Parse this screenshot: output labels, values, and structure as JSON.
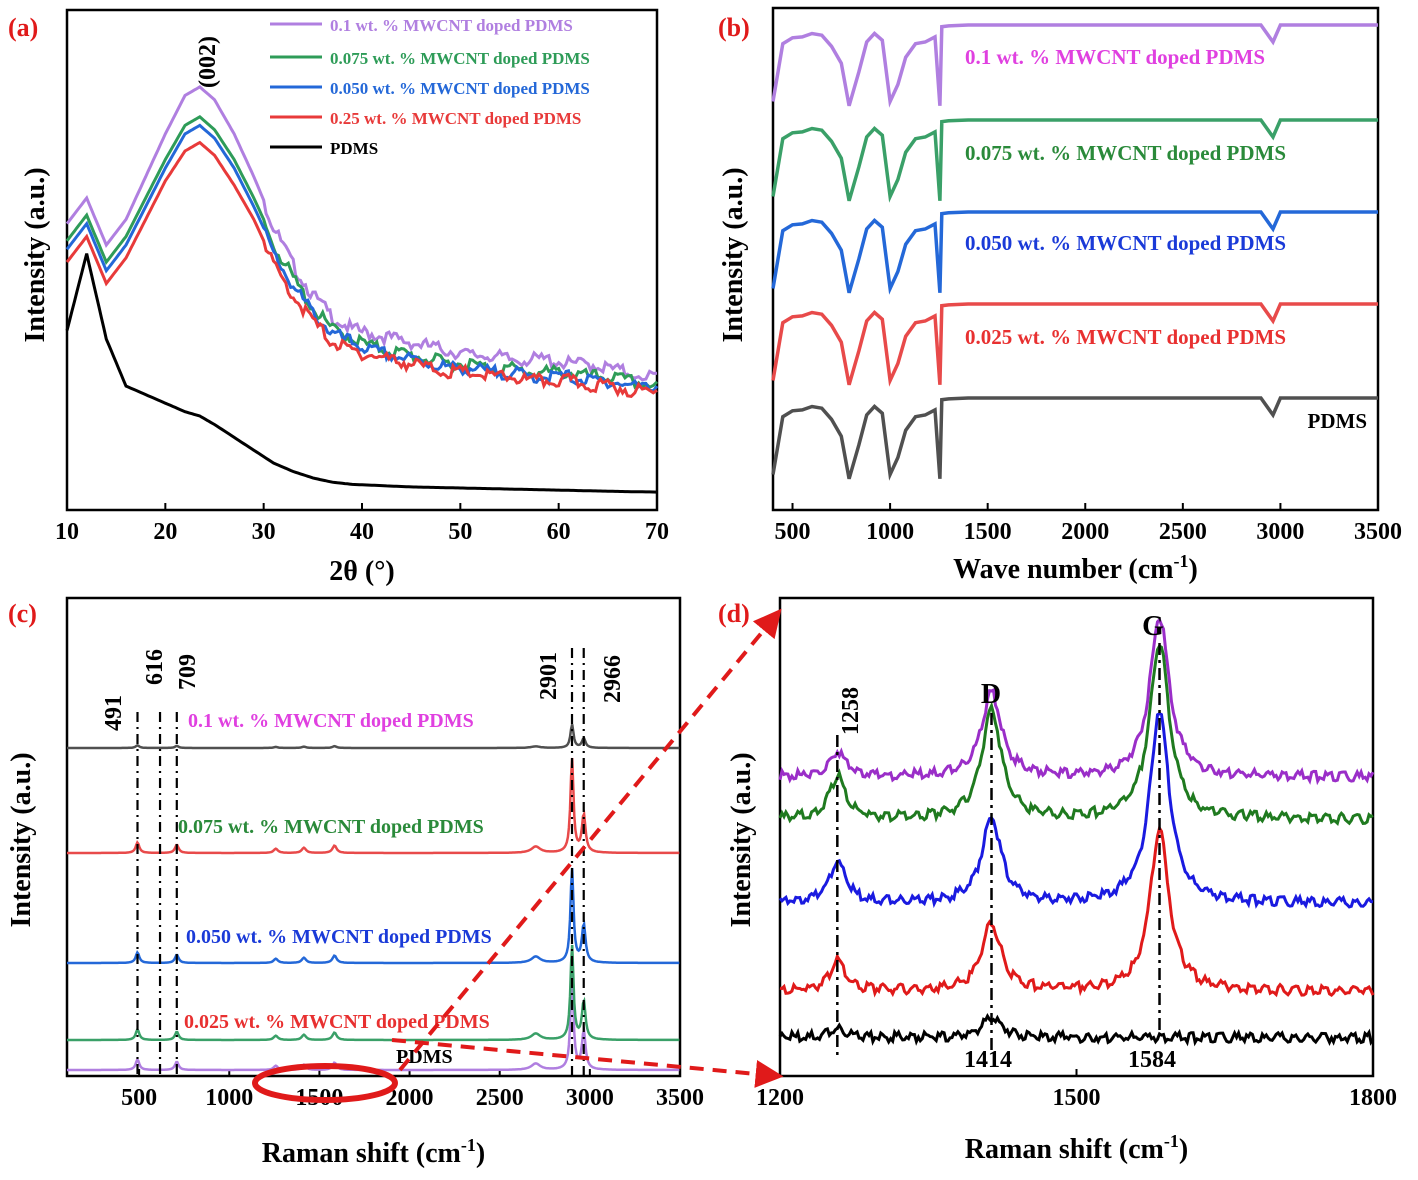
{
  "chart_data": [
    {
      "panel": "(a)",
      "type": "line",
      "xlabel": "2θ (°)",
      "ylabel": "Intensity (a.u.)",
      "xlim": [
        10,
        70
      ],
      "xticks": [
        "10",
        "20",
        "30",
        "40",
        "50",
        "60",
        "70"
      ],
      "annotations": [
        "(002)"
      ],
      "legend_position": "top-right",
      "x": [
        10,
        12,
        14,
        16,
        18,
        20,
        22,
        23.5,
        25,
        27,
        29,
        31,
        33,
        35,
        37,
        39,
        41,
        43,
        45,
        47,
        49,
        51,
        53,
        55,
        57,
        59,
        61,
        63,
        65,
        67,
        70
      ],
      "series": [
        {
          "name": "0.1 wt. % MWCNT doped PDMS",
          "color": "#b07fe0",
          "values": [
            65,
            71,
            60,
            66,
            76,
            86,
            95,
            97,
            94,
            86,
            76,
            65,
            56,
            49,
            44,
            41,
            40,
            39,
            38,
            37,
            36,
            35,
            35,
            34,
            34,
            34,
            33,
            33,
            32,
            31,
            30
          ]
        },
        {
          "name": "0.075 wt. % MWCNT doped PDMS",
          "color": "#2e9c58",
          "values": [
            61,
            67,
            56,
            62,
            71,
            80,
            88,
            90,
            87,
            80,
            71,
            61,
            53,
            46,
            41,
            39,
            37,
            36,
            35,
            34,
            33,
            33,
            32,
            32,
            31,
            31,
            31,
            30,
            30,
            29,
            28
          ]
        },
        {
          "name": "0.050 wt. % MWCNT doped PDMS",
          "color": "#2468d8",
          "values": [
            59,
            65,
            54,
            60,
            69,
            78,
            86,
            88,
            85,
            78,
            69,
            59,
            51,
            45,
            40,
            38,
            36,
            35,
            34,
            33,
            32,
            32,
            31,
            31,
            30,
            30,
            30,
            29,
            29,
            28,
            27
          ]
        },
        {
          "name": "0.25 wt. % MWCNT doped PDMS",
          "color": "#e83a3a",
          "values": [
            56,
            62,
            51,
            57,
            66,
            75,
            82,
            84,
            81,
            74,
            66,
            56,
            49,
            43,
            38,
            36,
            35,
            34,
            33,
            32,
            31,
            31,
            30,
            30,
            29,
            29,
            29,
            28,
            28,
            27,
            26
          ]
        },
        {
          "name": "PDMS",
          "color": "#000000",
          "values": [
            40,
            58,
            38,
            27,
            25,
            23,
            21,
            20,
            18,
            15,
            12,
            9,
            7,
            5.5,
            4.5,
            4,
            3.8,
            3.6,
            3.4,
            3.3,
            3.2,
            3.1,
            3,
            2.9,
            2.8,
            2.7,
            2.6,
            2.5,
            2.4,
            2.3,
            2.2
          ]
        }
      ]
    },
    {
      "panel": "(b)",
      "type": "line",
      "xlabel": "Wave number (cm",
      "xlabel_sup": "-1",
      "xlabel_end": ")",
      "ylabel": "Intensity (a.u.)",
      "xlim": [
        400,
        3500
      ],
      "xticks": [
        "500",
        "1000",
        "1500",
        "2000",
        "2500",
        "3000",
        "3500"
      ],
      "x": [
        400,
        450,
        500,
        550,
        600,
        650,
        700,
        750,
        790,
        840,
        880,
        920,
        960,
        1000,
        1040,
        1080,
        1130,
        1180,
        1230,
        1255,
        1265,
        1300,
        1400,
        1500,
        2000,
        2500,
        2900,
        2962,
        3000,
        3500
      ],
      "series": [
        {
          "name": "0.1 wt. % MWCNT doped PDMS",
          "color": "#b07fe0",
          "offset": 4,
          "values": [
            0.1,
            0.78,
            0.85,
            0.86,
            0.9,
            0.88,
            0.75,
            0.55,
            0.05,
            0.45,
            0.8,
            0.9,
            0.82,
            0.1,
            0.3,
            0.62,
            0.78,
            0.8,
            0.86,
            0.05,
            0.98,
            0.99,
            1.0,
            1.0,
            1.0,
            1.0,
            1.0,
            0.8,
            1.0,
            1.0
          ]
        },
        {
          "name": "0.075 wt. % MWCNT doped PDMS",
          "color": "#3aa068",
          "offset": 3,
          "values": [
            0.1,
            0.78,
            0.85,
            0.86,
            0.9,
            0.88,
            0.75,
            0.55,
            0.05,
            0.45,
            0.8,
            0.9,
            0.82,
            0.1,
            0.3,
            0.62,
            0.78,
            0.8,
            0.86,
            0.05,
            0.98,
            0.99,
            1.0,
            1.0,
            1.0,
            1.0,
            1.0,
            0.8,
            1.0,
            1.0
          ]
        },
        {
          "name": "0.050 wt. % MWCNT doped PDMS",
          "color": "#2468d8",
          "offset": 2,
          "values": [
            0.1,
            0.78,
            0.85,
            0.86,
            0.9,
            0.88,
            0.75,
            0.55,
            0.05,
            0.45,
            0.8,
            0.9,
            0.82,
            0.1,
            0.3,
            0.62,
            0.78,
            0.8,
            0.86,
            0.05,
            0.98,
            0.99,
            1.0,
            1.0,
            1.0,
            1.0,
            1.0,
            0.8,
            1.0,
            1.0
          ]
        },
        {
          "name": "0.025 wt. % MWCNT doped PDMS",
          "color": "#e84a4a",
          "offset": 1,
          "values": [
            0.1,
            0.78,
            0.85,
            0.86,
            0.9,
            0.88,
            0.75,
            0.55,
            0.05,
            0.45,
            0.8,
            0.9,
            0.82,
            0.1,
            0.3,
            0.62,
            0.78,
            0.8,
            0.86,
            0.05,
            0.98,
            0.99,
            1.0,
            1.0,
            1.0,
            1.0,
            1.0,
            0.8,
            1.0,
            1.0
          ]
        },
        {
          "name": "PDMS",
          "color": "#505050",
          "offset": 0,
          "values": [
            0.1,
            0.78,
            0.85,
            0.86,
            0.9,
            0.88,
            0.75,
            0.55,
            0.05,
            0.45,
            0.8,
            0.9,
            0.82,
            0.1,
            0.3,
            0.62,
            0.78,
            0.8,
            0.86,
            0.05,
            0.98,
            0.99,
            1.0,
            1.0,
            1.0,
            1.0,
            1.0,
            0.8,
            1.0,
            1.0
          ]
        }
      ],
      "labels": [
        {
          "text": "0.1 wt. % MWCNT doped PDMS",
          "color": "#e040e0"
        },
        {
          "text": "0.075 wt. % MWCNT doped PDMS",
          "color": "#2a8a3a"
        },
        {
          "text": "0.050 wt. % MWCNT doped PDMS",
          "color": "#1a3ad8"
        },
        {
          "text": "0.025 wt. % MWCNT doped PDMS",
          "color": "#e83030"
        },
        {
          "text": "PDMS",
          "color": "#000000"
        }
      ]
    },
    {
      "panel": "(c)",
      "type": "line",
      "xlabel": "Raman shift (cm",
      "xlabel_sup": "-1",
      "xlabel_end": ")",
      "ylabel": "Intensity (a.u.)",
      "xlim": [
        100,
        3500
      ],
      "xticks": [
        "500",
        "1000",
        "1500",
        "2000",
        "2500",
        "3000",
        "3500"
      ],
      "peak_markers": [
        "491",
        "616",
        "709",
        "2901",
        "2966"
      ],
      "peak_positions": [
        491,
        616,
        709,
        2901,
        2966
      ],
      "peaks": [
        {
          "x": 491,
          "h": 0.5,
          "w": 12
        },
        {
          "x": 709,
          "h": 0.4,
          "w": 12
        },
        {
          "x": 1258,
          "h": 0.2,
          "w": 14
        },
        {
          "x": 1414,
          "h": 0.25,
          "w": 14
        },
        {
          "x": 1584,
          "h": 0.35,
          "w": 14
        },
        {
          "x": 2700,
          "h": 0.3,
          "w": 30
        },
        {
          "x": 2901,
          "h": 4.5,
          "w": 10
        },
        {
          "x": 2966,
          "h": 1.8,
          "w": 12
        }
      ],
      "series": [
        {
          "name": "0.1 wt. % MWCNT doped PDMS",
          "color": "#b07fe0",
          "offset": 4
        },
        {
          "name": "0.075 wt. % MWCNT doped PDMS",
          "color": "#3aa068",
          "offset": 3
        },
        {
          "name": "0.050 wt. % MWCNT doped PDMS",
          "color": "#2468d8",
          "offset": 2
        },
        {
          "name": "0.025 wt. % MWCNT doped PDMS",
          "color": "#e84a4a",
          "offset": 1
        },
        {
          "name": "PDMS",
          "color": "#505050",
          "offset": 0
        }
      ],
      "labels": [
        {
          "text": "0.1 wt. % MWCNT doped PDMS",
          "color": "#e040e0"
        },
        {
          "text": "0.075 wt. % MWCNT doped PDMS",
          "color": "#2a8a3a"
        },
        {
          "text": "0.050 wt. % MWCNT doped PDMS",
          "color": "#1a3ad8"
        },
        {
          "text": "0.025 wt. % MWCNT doped PDMS",
          "color": "#e83030"
        },
        {
          "text": "PDMS",
          "color": "#000000"
        }
      ]
    },
    {
      "panel": "(d)",
      "type": "line",
      "xlabel": "Raman shift (cm",
      "xlabel_sup": "-1",
      "xlabel_end": ")",
      "ylabel": "Intensity (a.u.)",
      "xlim": [
        1200,
        1800
      ],
      "xticks": [
        "1200",
        "1500",
        "1800"
      ],
      "peak_labels": [
        "1258",
        "D",
        "G",
        "1414",
        "1584"
      ],
      "peak_positions": [
        1258,
        1414,
        1584
      ],
      "series": [
        {
          "name": "0.1 wt. % MWCNT doped PDMS",
          "color": "#9a2ec8",
          "base": 0.62,
          "amps": [
            0.06,
            0.2,
            0.38
          ]
        },
        {
          "name": "0.075 wt. % MWCNT doped PDMS",
          "color": "#1f7a1f",
          "base": 0.52,
          "amps": [
            0.1,
            0.26,
            0.42
          ]
        },
        {
          "name": "0.050 wt. % MWCNT doped PDMS",
          "color": "#1a1ae0",
          "base": 0.32,
          "amps": [
            0.1,
            0.2,
            0.46
          ]
        },
        {
          "name": "0.025 wt. % MWCNT doped PDMS",
          "color": "#e01a1a",
          "base": 0.11,
          "amps": [
            0.07,
            0.16,
            0.38
          ]
        },
        {
          "name": "PDMS",
          "color": "#000000",
          "base": 0.0,
          "amps": [
            0.02,
            0.05,
            0.0
          ]
        }
      ]
    }
  ],
  "panels": {
    "a": {
      "label": "(a)",
      "ylabel": "Intensity (a.u.)",
      "annotation": "(002)",
      "legend": [
        {
          "text": "0.1 wt. % MWCNT doped PDMS",
          "color": "#b07fe0"
        },
        {
          "text": "0.075 wt. % MWCNT doped PDMS",
          "color": "#2e9c58"
        },
        {
          "text": "0.050 wt. % MWCNT doped PDMS",
          "color": "#2468d8"
        },
        {
          "text": "0.25 wt. % MWCNT doped PDMS",
          "color": "#e83a3a"
        },
        {
          "text": "PDMS",
          "color": "#000000"
        }
      ]
    },
    "b": {
      "label": "(b)",
      "ylabel": "Intensity (a.u.)"
    },
    "c": {
      "label": "(c)",
      "ylabel": "Intensity (a.u.)"
    },
    "d": {
      "label": "(d)",
      "ylabel": "Intensity (a.u.)"
    }
  },
  "colors": {
    "panel_label": "#e01a1a",
    "arrow": "#e01a1a",
    "axis": "#000000"
  }
}
